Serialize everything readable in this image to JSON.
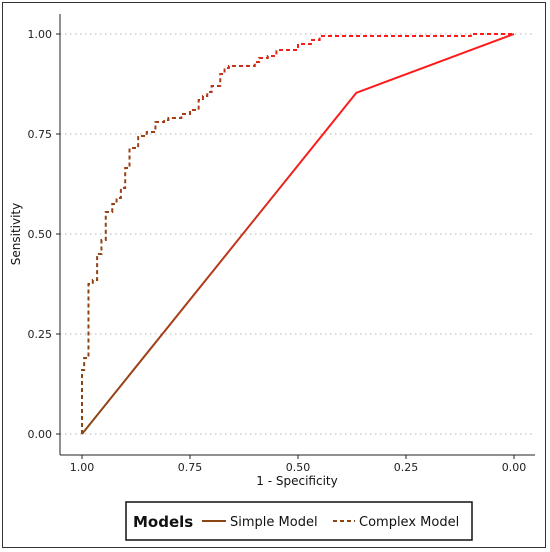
{
  "chart_data": {
    "type": "line",
    "title": "",
    "xlabel": "1 - Specificity",
    "ylabel": "Sensitivity",
    "xlim": [
      1.0,
      0.0
    ],
    "ylim": [
      0.0,
      1.0
    ],
    "x_reversed": true,
    "x_ticks": [
      "1.00",
      "0.75",
      "0.50",
      "0.25",
      "0.00"
    ],
    "y_ticks": [
      "0.00",
      "0.25",
      "0.50",
      "0.75",
      "1.00"
    ],
    "grid": "horizontal dotted",
    "legend": {
      "title": "Models",
      "position": "bottom",
      "entries": [
        "Simple Model",
        "Complex Model"
      ]
    },
    "series": [
      {
        "name": "Simple Model",
        "line": "solid",
        "color_start": "#8B4513",
        "color_end": "#ff1a1a",
        "x": [
          1.0,
          0.365,
          0.0
        ],
        "y": [
          0.0,
          0.853,
          1.0
        ]
      },
      {
        "name": "Complex Model",
        "line": "dashed",
        "color_start": "#8B4513",
        "color_end": "#ff1a1a",
        "x": [
          1.0,
          1.0,
          0.995,
          0.995,
          0.985,
          0.985,
          0.975,
          0.975,
          0.965,
          0.965,
          0.955,
          0.955,
          0.945,
          0.945,
          0.93,
          0.93,
          0.92,
          0.92,
          0.91,
          0.91,
          0.9,
          0.9,
          0.89,
          0.89,
          0.87,
          0.87,
          0.85,
          0.85,
          0.83,
          0.83,
          0.81,
          0.81,
          0.8,
          0.8,
          0.77,
          0.77,
          0.75,
          0.75,
          0.73,
          0.73,
          0.72,
          0.72,
          0.71,
          0.71,
          0.7,
          0.7,
          0.68,
          0.68,
          0.67,
          0.67,
          0.66,
          0.66,
          0.6,
          0.6,
          0.59,
          0.59,
          0.57,
          0.57,
          0.55,
          0.55,
          0.5,
          0.5,
          0.47,
          0.47,
          0.45,
          0.45,
          0.41,
          0.41,
          0.39,
          0.39,
          0.1,
          0.1,
          0.0
        ],
        "y": [
          0.0,
          0.16,
          0.16,
          0.19,
          0.19,
          0.375,
          0.375,
          0.385,
          0.385,
          0.45,
          0.45,
          0.485,
          0.485,
          0.555,
          0.555,
          0.575,
          0.575,
          0.59,
          0.59,
          0.615,
          0.615,
          0.665,
          0.665,
          0.715,
          0.715,
          0.745,
          0.745,
          0.755,
          0.755,
          0.78,
          0.78,
          0.785,
          0.785,
          0.79,
          0.79,
          0.8,
          0.8,
          0.81,
          0.81,
          0.835,
          0.835,
          0.845,
          0.845,
          0.855,
          0.855,
          0.87,
          0.87,
          0.9,
          0.9,
          0.915,
          0.915,
          0.92,
          0.92,
          0.93,
          0.93,
          0.94,
          0.94,
          0.945,
          0.945,
          0.96,
          0.96,
          0.975,
          0.975,
          0.985,
          0.985,
          0.995,
          0.995,
          0.995,
          0.995,
          0.995,
          0.995,
          1.0,
          1.0
        ]
      }
    ]
  }
}
